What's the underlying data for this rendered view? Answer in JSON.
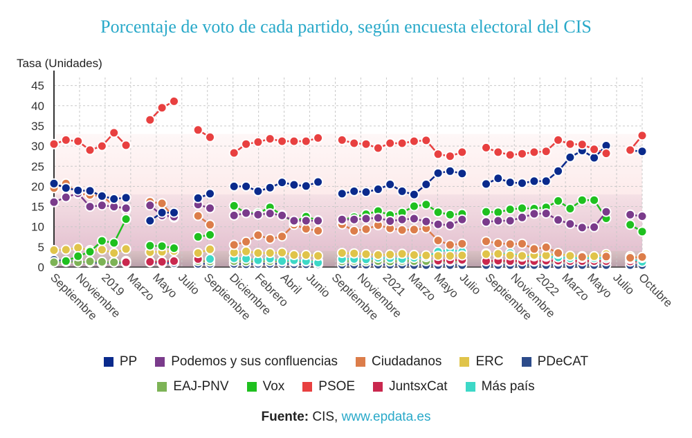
{
  "chart_data": {
    "type": "line",
    "title": "Porcentaje de voto de cada partido, según encuesta electoral del CIS",
    "ylabel": "Tasa (Unidades)",
    "xlabel": "",
    "ylim": [
      0,
      47
    ],
    "yticks": [
      0,
      5,
      10,
      15,
      20,
      25,
      30,
      35,
      40,
      45
    ],
    "grid": true,
    "legend_position": "bottom",
    "x_tick_labels": [
      "Septiembre",
      "Noviembre",
      "2019",
      "Marzo",
      "Mayo",
      "Julio",
      "Septiembre",
      "Diciembre",
      "Febrero",
      "Abril",
      "Junio",
      "Septiembre",
      "Noviembre",
      "2021",
      "Marzo",
      "Mayo",
      "Julio",
      "Septiembre",
      "Noviembre",
      "2022",
      "Marzo",
      "Mayo",
      "Julio",
      "Octubre"
    ],
    "series": [
      {
        "name": "PSOE",
        "color": "#e84040",
        "values": [
          30.5,
          31.5,
          31.2,
          29,
          30,
          33.3,
          30.2,
          null,
          36.5,
          39.5,
          41.1,
          null,
          34,
          32.2,
          null,
          28.3,
          30.5,
          31,
          31.8,
          31.2,
          31.2,
          31.2,
          32,
          null,
          31.5,
          30.7,
          30.5,
          29.5,
          30.7,
          30.7,
          31.2,
          31.4,
          28,
          27.5,
          28.5,
          null,
          29.6,
          28.5,
          27.8,
          28.1,
          28.5,
          28.7,
          31.5,
          30.5,
          30.4,
          29.2,
          28.2,
          null,
          29,
          32.6
        ]
      },
      {
        "name": "PP",
        "color": "#0a2a8c",
        "values": [
          20.7,
          19.6,
          19,
          18.9,
          17.6,
          16.9,
          17.2,
          null,
          11.5,
          13.5,
          13.5,
          null,
          17.1,
          18.2,
          null,
          20,
          20,
          18.8,
          19.7,
          21,
          20.4,
          20.1,
          21.1,
          null,
          18.2,
          18.8,
          18.6,
          19.3,
          20.5,
          18.8,
          18,
          20.5,
          23.3,
          23.8,
          23.2,
          null,
          20.6,
          22,
          21,
          20.8,
          21.3,
          21.3,
          23.8,
          27.2,
          28.9,
          27.1,
          30.1,
          null,
          28.9,
          28.7
        ]
      },
      {
        "name": "Podemos y sus confluencias",
        "color": "#7a3b8b",
        "values": [
          16.1,
          17.3,
          18.3,
          15,
          15.3,
          15,
          14.6,
          null,
          15.3,
          12.8,
          12.5,
          null,
          15.5,
          14.6,
          null,
          12.8,
          13.4,
          13,
          13.3,
          12.8,
          11.5,
          11.5,
          11.5,
          null,
          11.8,
          11.8,
          12,
          12.2,
          11.4,
          11.8,
          12,
          11.3,
          10.6,
          10.4,
          11.8,
          null,
          11.2,
          11.5,
          11.5,
          12.3,
          13.2,
          13.3,
          11.7,
          10.7,
          9.8,
          9.9,
          13.7,
          null,
          13,
          12.6
        ]
      },
      {
        "name": "Ciudadanos",
        "color": "#dc7d4a",
        "values": [
          19.6,
          20.7,
          18.2,
          17.9,
          17.6,
          15.3,
          14.2,
          null,
          16.2,
          15.8,
          12.3,
          null,
          12.7,
          10.5,
          null,
          5.5,
          6.3,
          7.9,
          7,
          7.6,
          10.5,
          9.5,
          9,
          null,
          10.6,
          9,
          9.4,
          10.4,
          9.6,
          9.2,
          9.3,
          9.6,
          6.6,
          5.5,
          5.8,
          null,
          6.4,
          5.9,
          5.7,
          5.8,
          4.5,
          4.9,
          3.5,
          null,
          2.5,
          null,
          2.6,
          null,
          2.3,
          2.5
        ]
      },
      {
        "name": "ERC",
        "color": "#e0c44a",
        "values": [
          4.2,
          4.3,
          4.8,
          4.2,
          4.3,
          3.5,
          4.5,
          null,
          3.7,
          3.8,
          4,
          null,
          3.5,
          4.4,
          null,
          3.6,
          3.9,
          3.5,
          3.5,
          3.6,
          3,
          3,
          2.8,
          null,
          3.5,
          3.4,
          3.2,
          3,
          3.1,
          3.3,
          3,
          2.9,
          2.8,
          2.8,
          2.9,
          null,
          3.2,
          3.3,
          2.9,
          2.8,
          3,
          2.9,
          3.3,
          2.8,
          2.7,
          2.7,
          3.2,
          null,
          2.7,
          2.3
        ]
      },
      {
        "name": "PDeCAT",
        "color": "#2c4b8a",
        "values": [
          1.8,
          1.5,
          1.3,
          1.2,
          1,
          1.2,
          1,
          null,
          1.2,
          1,
          1,
          null,
          0.8,
          0.8,
          null,
          0.8,
          0.7,
          0.8,
          0.8,
          0.8,
          0.7,
          0.7,
          0.7,
          null,
          0.6,
          0.6,
          0.6,
          0.6,
          0.6,
          0.6,
          0.5,
          0.5,
          0.5,
          0.5,
          0.5,
          null,
          0.5,
          0.5,
          0.5,
          0.5,
          0.5,
          0.5,
          0.5,
          0.5,
          0.5,
          0.5,
          0.5,
          null,
          0.5,
          0.5
        ]
      },
      {
        "name": "EAJ-PNV",
        "color": "#7db356",
        "values": [
          1.2,
          1.3,
          1.2,
          1.4,
          1.3,
          1.2,
          1.5,
          null,
          1.4,
          1.4,
          1.5,
          null,
          1.5,
          1.4,
          null,
          1.5,
          1.4,
          1.4,
          1.5,
          1.4,
          1.4,
          1.4,
          1.5,
          null,
          1.4,
          1.5,
          1.4,
          1.5,
          1.4,
          1.5,
          1.5,
          1.5,
          1.4,
          1.5,
          1.5,
          null,
          1.5,
          1.4,
          1.4,
          1.5,
          1.4,
          1.5,
          1.4,
          1.5,
          1.5,
          1.4,
          1.5,
          null,
          1.4,
          1.4
        ]
      },
      {
        "name": "Vox",
        "color": "#1fc01f",
        "values": [
          null,
          1.5,
          2.7,
          3.8,
          6.5,
          6,
          11.9,
          null,
          5.3,
          5.2,
          4.7,
          null,
          7.5,
          8,
          null,
          15.2,
          13.4,
          13.4,
          14.8,
          12.9,
          11.2,
          12.5,
          11.6,
          null,
          11.7,
          12.4,
          13.1,
          13.9,
          12.9,
          13.5,
          15.1,
          15.5,
          13.6,
          13,
          13.2,
          null,
          13.7,
          13.6,
          14.3,
          14.6,
          14.5,
          14.8,
          16.4,
          14.5,
          16.6,
          16.6,
          12.1,
          null,
          10.5,
          8.8
        ]
      },
      {
        "name": "JuntsxCat",
        "color": "#c9284e",
        "values": [
          null,
          null,
          null,
          null,
          null,
          null,
          1.2,
          null,
          1.3,
          1.3,
          1.5,
          null,
          2,
          null,
          null,
          null,
          null,
          null,
          null,
          null,
          null,
          null,
          null,
          null,
          null,
          null,
          null,
          null,
          null,
          null,
          null,
          null,
          1.6,
          1.7,
          1.8,
          null,
          1.5,
          1.6,
          1.5,
          1.5,
          1.5,
          1.6,
          1.6,
          1.5,
          1.5,
          1.5,
          1.5,
          null,
          1.4,
          1.4
        ]
      },
      {
        "name": "Más país",
        "color": "#3dd8c7",
        "values": [
          null,
          null,
          null,
          null,
          null,
          null,
          null,
          null,
          null,
          null,
          null,
          null,
          null,
          2,
          null,
          2.2,
          2.1,
          1.7,
          2.1,
          1.5,
          1.7,
          1.5,
          1.1,
          null,
          2,
          2,
          1.9,
          2.3,
          2.2,
          2,
          2.3,
          2.5,
          3.8,
          4.3,
          3.8,
          null,
          3.4,
          3.1,
          3.5,
          2.6,
          2.7,
          2.6,
          2.4,
          2.2,
          2.3,
          2.2,
          2.2,
          null,
          2,
          1.3
        ]
      }
    ]
  },
  "legend": {
    "row1": [
      {
        "label": "PP",
        "color": "#0a2a8c"
      },
      {
        "label": "Podemos y sus confluencias",
        "color": "#7a3b8b"
      },
      {
        "label": "Ciudadanos",
        "color": "#dc7d4a"
      },
      {
        "label": "ERC",
        "color": "#e0c44a"
      },
      {
        "label": "PDeCAT",
        "color": "#2c4b8a"
      }
    ],
    "row2": [
      {
        "label": "EAJ-PNV",
        "color": "#7db356"
      },
      {
        "label": "Vox",
        "color": "#1fc01f"
      },
      {
        "label": "PSOE",
        "color": "#e84040"
      },
      {
        "label": "JuntsxCat",
        "color": "#c9284e"
      },
      {
        "label": "Más país",
        "color": "#3dd8c7"
      }
    ]
  },
  "source": {
    "label": "Fuente:",
    "text": " CIS, ",
    "link": "www.epdata.es"
  }
}
